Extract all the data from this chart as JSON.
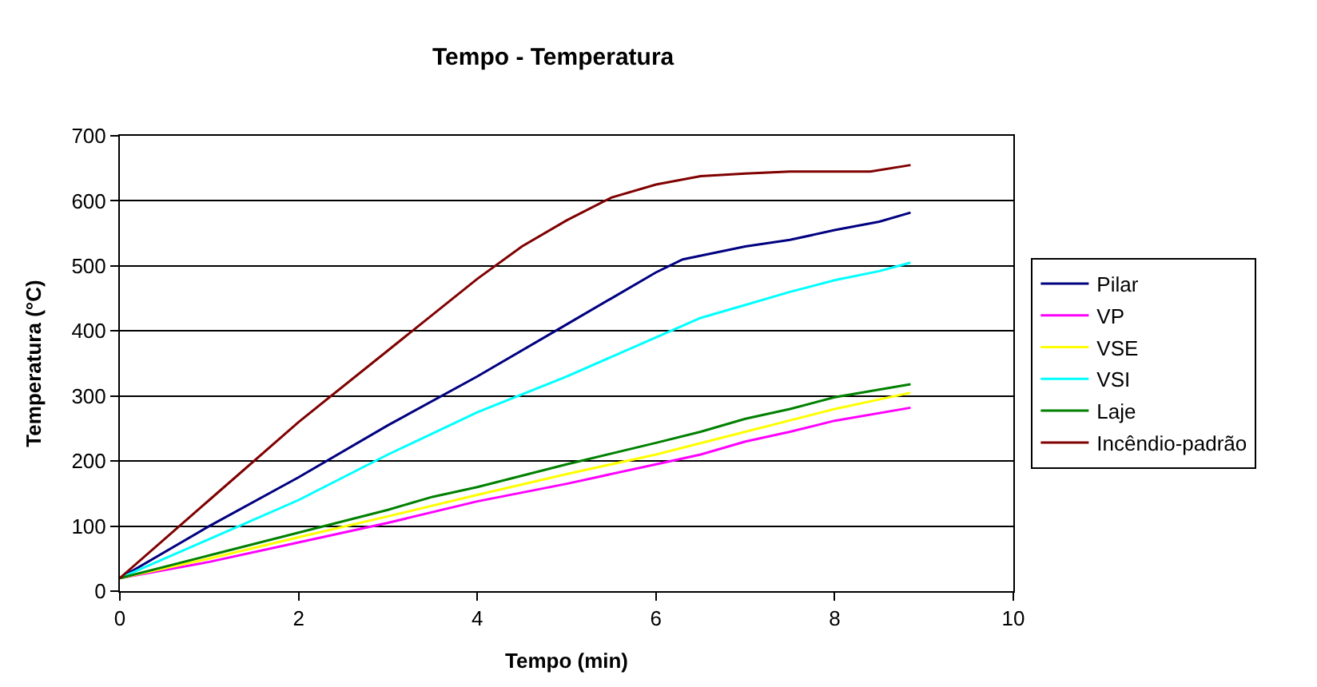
{
  "chart_data": {
    "type": "line",
    "title": "Tempo - Temperatura",
    "xlabel": "Tempo (min)",
    "ylabel": "Temperatura (°C)",
    "xlim": [
      0,
      10
    ],
    "xticks": [
      0,
      2,
      4,
      6,
      8,
      10
    ],
    "ylim": [
      0,
      700
    ],
    "yticks": [
      0,
      100,
      200,
      300,
      400,
      500,
      600,
      700
    ],
    "grid": "y",
    "legend": "right",
    "marker": "none",
    "line_style": "solid",
    "series": [
      {
        "name": "Pilar",
        "color": "#000080",
        "x": [
          0,
          1,
          2,
          3,
          4,
          5,
          5.5,
          6,
          6.3,
          7,
          7.5,
          8,
          8.5,
          8.85
        ],
        "values": [
          20,
          100,
          175,
          255,
          330,
          410,
          450,
          490,
          510,
          530,
          540,
          555,
          568,
          582
        ]
      },
      {
        "name": "VP",
        "color": "#ff00ff",
        "x": [
          0,
          1,
          2,
          3,
          4,
          5,
          6,
          6.5,
          7,
          7.5,
          8,
          8.85
        ],
        "values": [
          20,
          45,
          75,
          105,
          138,
          165,
          195,
          210,
          230,
          245,
          262,
          282
        ]
      },
      {
        "name": "VSE",
        "color": "#ffff00",
        "x": [
          0,
          1,
          2,
          3,
          4,
          5,
          6,
          7,
          8,
          8.85
        ],
        "values": [
          20,
          50,
          83,
          115,
          148,
          180,
          210,
          245,
          280,
          305
        ]
      },
      {
        "name": "VSI",
        "color": "#00ffff",
        "x": [
          0,
          1,
          2,
          3,
          4,
          5,
          6,
          6.5,
          7,
          7.5,
          8,
          8.5,
          8.85
        ],
        "values": [
          20,
          80,
          140,
          210,
          275,
          330,
          390,
          420,
          440,
          460,
          478,
          492,
          505
        ]
      },
      {
        "name": "Laje",
        "color": "#008000",
        "x": [
          0,
          1,
          2,
          3,
          3.5,
          4,
          5,
          6,
          6.5,
          7,
          7.5,
          8,
          8.85
        ],
        "values": [
          20,
          55,
          90,
          125,
          145,
          160,
          195,
          228,
          245,
          265,
          280,
          298,
          318
        ]
      },
      {
        "name": "Incêndio-padrão",
        "color": "#800000",
        "x": [
          0,
          1,
          2,
          3,
          4,
          4.5,
          5,
          5.5,
          6,
          6.5,
          7,
          7.5,
          8,
          8.4,
          8.85
        ],
        "values": [
          20,
          140,
          260,
          370,
          480,
          530,
          570,
          605,
          625,
          638,
          642,
          645,
          645,
          645,
          655
        ]
      }
    ]
  }
}
